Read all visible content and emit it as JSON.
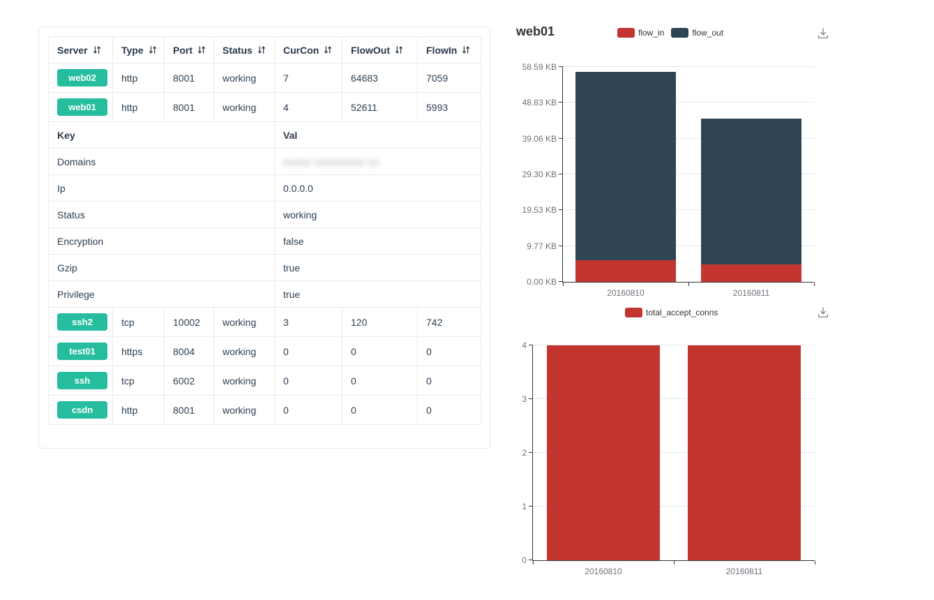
{
  "colors": {
    "series_red": "#c23531",
    "series_dark": "#2f4554",
    "badge_green": "#25bd9e",
    "axis_line": "#333333",
    "axis_label_gray": "#6e7079",
    "grid_line": "#e6e8ed",
    "table_text": "#2c3e50",
    "table_border": "#ebebeb"
  },
  "icons": {
    "sort_icon": "⇵",
    "download_icon": "⤓"
  },
  "table": {
    "columns": [
      {
        "label": "Server"
      },
      {
        "label": "Type"
      },
      {
        "label": "Port"
      },
      {
        "label": "Status"
      },
      {
        "label": "CurCon"
      },
      {
        "label": "FlowOut"
      },
      {
        "label": "FlowIn"
      }
    ],
    "server_rows_top": [
      {
        "server": "web02",
        "type": "http",
        "port": "8001",
        "status": "working",
        "curcon": "7",
        "flowout": "64683",
        "flowin": "7059"
      },
      {
        "server": "web01",
        "type": "http",
        "port": "8001",
        "status": "working",
        "curcon": "4",
        "flowout": "52611",
        "flowin": "5993"
      }
    ],
    "kv_header": {
      "key": "Key",
      "val": "Val"
    },
    "kv_rows": [
      {
        "key": "Domains",
        "val": "xxxxx xxxxxxxxx xx",
        "redacted": true
      },
      {
        "key": "Ip",
        "val": "0.0.0.0"
      },
      {
        "key": "Status",
        "val": "working"
      },
      {
        "key": "Encryption",
        "val": "false"
      },
      {
        "key": "Gzip",
        "val": "true"
      },
      {
        "key": "Privilege",
        "val": "true"
      }
    ],
    "server_rows_bottom": [
      {
        "server": "ssh2",
        "type": "tcp",
        "port": "10002",
        "status": "working",
        "curcon": "3",
        "flowout": "120",
        "flowin": "742"
      },
      {
        "server": "test01",
        "type": "https",
        "port": "8004",
        "status": "working",
        "curcon": "0",
        "flowout": "0",
        "flowin": "0"
      },
      {
        "server": "ssh",
        "type": "tcp",
        "port": "6002",
        "status": "working",
        "curcon": "0",
        "flowout": "0",
        "flowin": "0"
      },
      {
        "server": "csdn",
        "type": "http",
        "port": "8001",
        "status": "working",
        "curcon": "0",
        "flowout": "0",
        "flowin": "0"
      }
    ]
  },
  "chart_data": [
    {
      "type": "bar",
      "stacked": true,
      "title": "web01",
      "unit": "KB",
      "categories": [
        "20160810",
        "20160811"
      ],
      "series": [
        {
          "name": "flow_in",
          "color": "#c23531",
          "values": [
            5.85,
            4.78
          ]
        },
        {
          "name": "flow_out",
          "color": "#2f4554",
          "values": [
            51.38,
            39.71
          ]
        }
      ],
      "ymax": 58.59,
      "ytick_labels": [
        "0.00 KB",
        "9.77 KB",
        "19.53 KB",
        "29.30 KB",
        "39.06 KB",
        "48.83 KB",
        "58.59 KB"
      ],
      "legend_position": "top-center",
      "grid": true
    },
    {
      "type": "bar",
      "stacked": false,
      "title": "",
      "unit": "",
      "categories": [
        "20160810",
        "20160811"
      ],
      "series": [
        {
          "name": "total_accept_conns",
          "color": "#c23531",
          "values": [
            4,
            4
          ]
        }
      ],
      "ymax": 4,
      "ytick_labels": [
        "0",
        "1",
        "2",
        "3",
        "4"
      ],
      "legend_position": "top-center",
      "grid": true
    }
  ]
}
